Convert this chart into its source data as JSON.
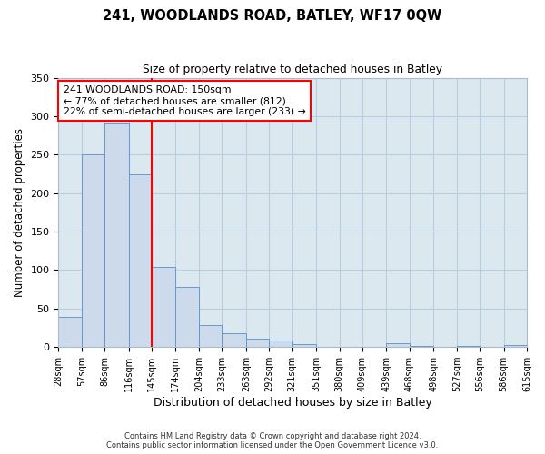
{
  "title": "241, WOODLANDS ROAD, BATLEY, WF17 0QW",
  "subtitle": "Size of property relative to detached houses in Batley",
  "xlabel": "Distribution of detached houses by size in Batley",
  "ylabel": "Number of detached properties",
  "footer_line1": "Contains HM Land Registry data © Crown copyright and database right 2024.",
  "footer_line2": "Contains public sector information licensed under the Open Government Licence v3.0.",
  "bin_labels": [
    "28sqm",
    "57sqm",
    "86sqm",
    "116sqm",
    "145sqm",
    "174sqm",
    "204sqm",
    "233sqm",
    "263sqm",
    "292sqm",
    "321sqm",
    "351sqm",
    "380sqm",
    "409sqm",
    "439sqm",
    "468sqm",
    "498sqm",
    "527sqm",
    "556sqm",
    "586sqm",
    "615sqm"
  ],
  "bar_values": [
    39,
    250,
    291,
    225,
    104,
    78,
    29,
    18,
    11,
    9,
    4,
    0,
    0,
    0,
    5,
    1,
    0,
    1,
    0,
    3
  ],
  "bin_edges": [
    28,
    57,
    86,
    116,
    145,
    174,
    204,
    233,
    263,
    292,
    321,
    351,
    380,
    409,
    439,
    468,
    498,
    527,
    556,
    586,
    615
  ],
  "bar_color": "#ccdaeb",
  "bar_edge_color": "#6699cc",
  "vline_x": 145,
  "vline_color": "red",
  "annotation_line1": "241 WOODLANDS ROAD: 150sqm",
  "annotation_line2": "← 77% of detached houses are smaller (812)",
  "annotation_line3": "22% of semi-detached houses are larger (233) →",
  "annotation_box_color": "white",
  "annotation_box_edge_color": "red",
  "ylim": [
    0,
    350
  ],
  "yticks": [
    0,
    50,
    100,
    150,
    200,
    250,
    300,
    350
  ],
  "fig_bg_color": "white",
  "plot_bg_color": "#dce8f0",
  "grid_color": "#b8cede"
}
